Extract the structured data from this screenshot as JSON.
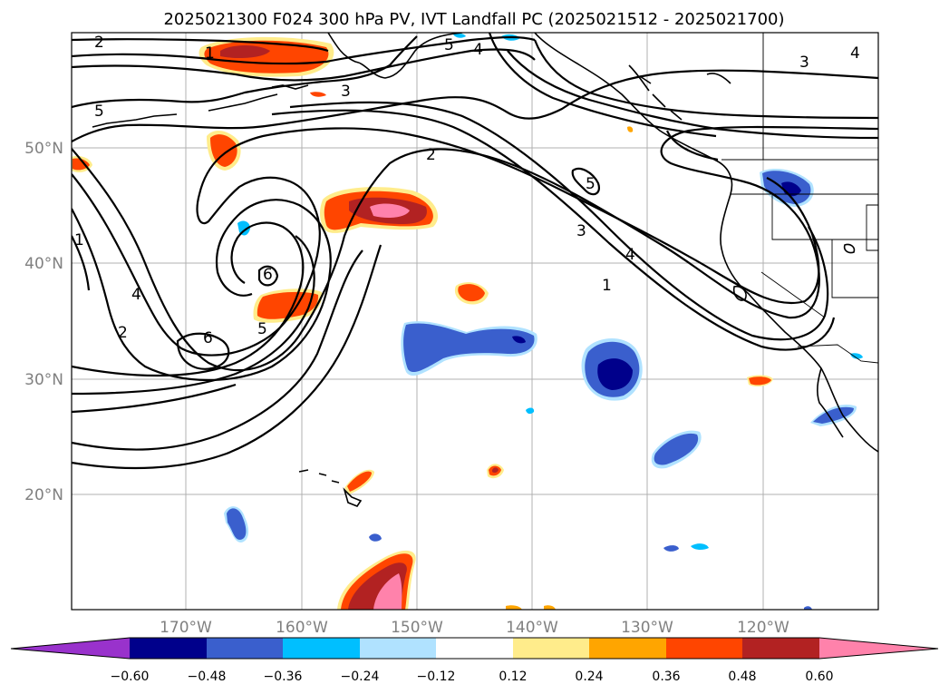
{
  "title": "2025021300 F024 300 hPa PV, IVT Landfall PC (2025021512 - 2025021700)",
  "map": {
    "projection": "cylindrical",
    "lon_range": [
      -180,
      -110
    ],
    "lat_range": [
      10,
      60
    ],
    "grid_lons": [
      -170,
      -160,
      -150,
      -140,
      -130,
      -120
    ],
    "grid_lats": [
      20,
      30,
      40,
      50
    ],
    "lon_labels": [
      "170°W",
      "160°W",
      "150°W",
      "140°W",
      "130°W",
      "120°W"
    ],
    "lat_labels": [
      "20°N",
      "30°N",
      "40°N",
      "50°N"
    ]
  },
  "contour_labels": [
    {
      "text": "2"
    },
    {
      "text": "1"
    },
    {
      "text": "5"
    },
    {
      "text": "3"
    },
    {
      "text": "5"
    },
    {
      "text": "4"
    },
    {
      "text": "3"
    },
    {
      "text": "4"
    },
    {
      "text": "2"
    },
    {
      "text": "5"
    },
    {
      "text": "3"
    },
    {
      "text": "4"
    },
    {
      "text": "1"
    },
    {
      "text": "1"
    },
    {
      "text": "4"
    },
    {
      "text": "2"
    },
    {
      "text": "6"
    },
    {
      "text": "6"
    },
    {
      "text": "5"
    }
  ],
  "colorbar": {
    "colors": [
      "#9932cc",
      "#00008b",
      "#3a5fcd",
      "#00bfff",
      "#b0e2ff",
      "#ffffff",
      "#ffec8b",
      "#ffa500",
      "#ff4500",
      "#b22222",
      "#ff82ab"
    ],
    "tick_labels": [
      "−0.60",
      "−0.48",
      "−0.36",
      "−0.24",
      "−0.12",
      "0.12",
      "0.24",
      "0.36",
      "0.48",
      "0.60"
    ]
  },
  "fill_colors": {
    "pos_outer": "#ffec8b",
    "pos_mid": "#ffa500",
    "pos_main": "#ff4500",
    "pos_dark": "#b22222",
    "pos_core": "#ff82ab",
    "neg_outer": "#b0e2ff",
    "neg_light": "#00bfff",
    "neg_main": "#3a5fcd",
    "neg_core": "#00008b"
  }
}
